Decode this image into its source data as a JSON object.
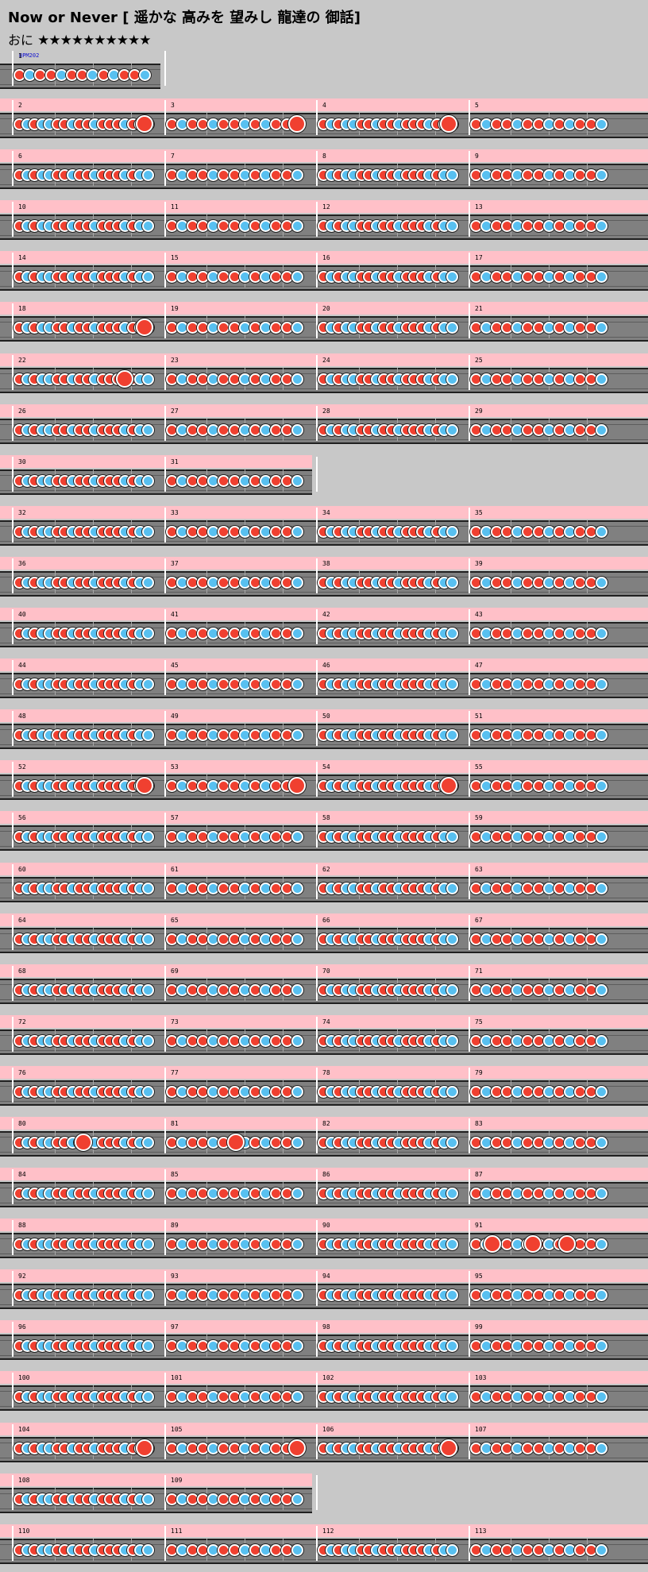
{
  "song": {
    "title": "Now or Never",
    "subtitle": "[ 遥かな 高みを 望みし 龍達の 御話]",
    "difficulty_label": "おに",
    "stars": "★★★★★★★★★★",
    "bpm_label": "BPM202"
  },
  "rows": [
    {
      "measures": [
        "1"
      ],
      "partial": true,
      "band": false
    },
    {
      "measures": [
        "2",
        "3",
        "4",
        "5"
      ]
    },
    {
      "measures": [
        "6",
        "7",
        "8",
        "9"
      ]
    },
    {
      "measures": [
        "10",
        "11",
        "12",
        "13"
      ]
    },
    {
      "measures": [
        "14",
        "15",
        "16",
        "17"
      ]
    },
    {
      "measures": [
        "18",
        "19",
        "20",
        "21"
      ]
    },
    {
      "measures": [
        "22",
        "23",
        "24",
        "25"
      ]
    },
    {
      "measures": [
        "26",
        "27",
        "28",
        "29"
      ]
    },
    {
      "measures": [
        "30",
        "31"
      ],
      "partial": true
    },
    {
      "measures": [
        "32",
        "33",
        "34",
        "35"
      ]
    },
    {
      "measures": [
        "36",
        "37",
        "38",
        "39"
      ]
    },
    {
      "measures": [
        "40",
        "41",
        "42",
        "43"
      ]
    },
    {
      "measures": [
        "44",
        "45",
        "46",
        "47"
      ]
    },
    {
      "measures": [
        "48",
        "49",
        "50",
        "51"
      ]
    },
    {
      "measures": [
        "52",
        "53",
        "54",
        "55"
      ]
    },
    {
      "measures": [
        "56",
        "57",
        "58",
        "59"
      ]
    },
    {
      "measures": [
        "60",
        "61",
        "62",
        "63"
      ]
    },
    {
      "measures": [
        "64",
        "65",
        "66",
        "67"
      ]
    },
    {
      "measures": [
        "68",
        "69",
        "70",
        "71"
      ]
    },
    {
      "measures": [
        "72",
        "73",
        "74",
        "75"
      ]
    },
    {
      "measures": [
        "76",
        "77",
        "78",
        "79"
      ]
    },
    {
      "measures": [
        "80",
        "81",
        "82",
        "83"
      ]
    },
    {
      "measures": [
        "84",
        "85",
        "86",
        "87"
      ]
    },
    {
      "measures": [
        "88",
        "89",
        "90",
        "91"
      ]
    },
    {
      "measures": [
        "92",
        "93",
        "94",
        "95"
      ]
    },
    {
      "measures": [
        "96",
        "97",
        "98",
        "99"
      ]
    },
    {
      "measures": [
        "100",
        "101",
        "102",
        "103"
      ]
    },
    {
      "measures": [
        "104",
        "105",
        "106",
        "107"
      ]
    },
    {
      "measures": [
        "108",
        "109"
      ],
      "partial": true
    },
    {
      "measures": [
        "110",
        "111",
        "112",
        "113"
      ]
    }
  ],
  "note_patterns": [
    "DKDDKDDKDKDDK",
    "KDDDKDDDDKDKDDKDDKK",
    "DDKDDKDDDKDDDKDK",
    "DKDKKDDKDDKDDDKDKK",
    "KDDDDKDDKDDKDDDDKD",
    "DKDDKDDKKDDDKDDKKDDD"
  ],
  "big_notes": {
    "2": [
      0.9
    ],
    "3": [
      0.9
    ],
    "4": [
      0.9
    ],
    "18": [
      0.9
    ],
    "22": [
      0.75
    ],
    "52": [
      0.9
    ],
    "53": [
      0.9
    ],
    "54": [
      0.9
    ],
    "80": [
      0.45
    ],
    "81": [
      0.45
    ],
    "91": [
      0.1,
      0.4,
      0.65
    ],
    "104": [
      0.9
    ],
    "105": [
      0.9
    ],
    "106": [
      0.9
    ]
  },
  "colors": {
    "background": "#c8c8c8",
    "band": "#ffc0c8",
    "lane": "#808080",
    "don": "#f04030",
    "ka": "#58c0f0"
  }
}
